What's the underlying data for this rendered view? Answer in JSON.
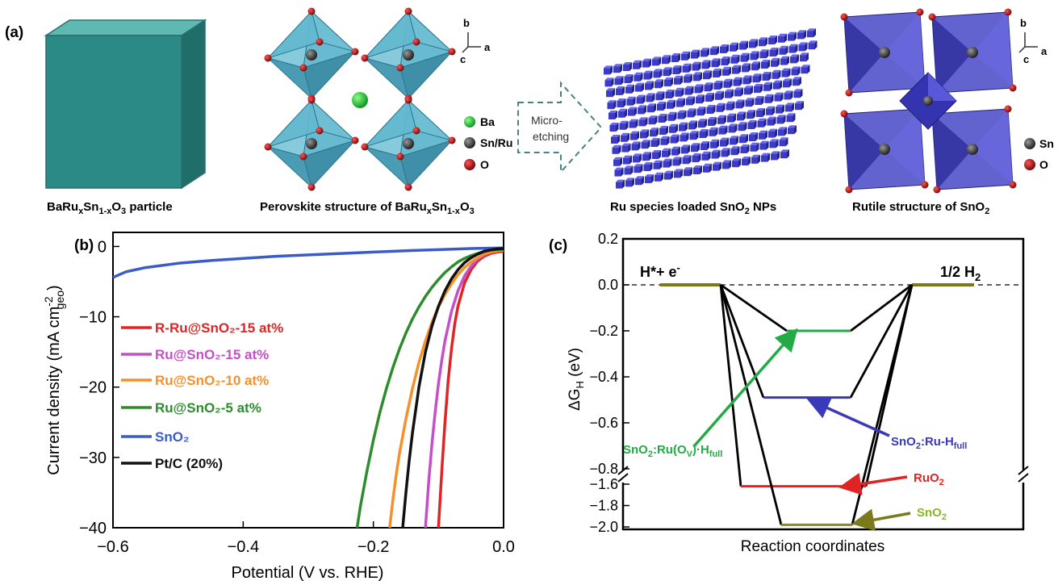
{
  "panel_a": {
    "label": "(a)",
    "cube_caption": {
      "main": "BaRu",
      "x": "x",
      "mid": "Sn",
      "sub": "1-x",
      "o": "O",
      "three": "3",
      "tail": " particle"
    },
    "perov_caption": {
      "main": "Perovskite structure of BaRu",
      "x": "x",
      "mid": "Sn",
      "sub": "1-x",
      "o": "O",
      "three": "3"
    },
    "np_caption": {
      "main": "Ru species loaded SnO",
      "two": "2",
      "tail": " NPs"
    },
    "rutile_caption": {
      "main": "Rutile structure of SnO",
      "two": "2"
    },
    "arrow_text": [
      "Micro-",
      "etching"
    ],
    "legend1": {
      "ba": "Ba",
      "snru": "Sn/Ru",
      "o": "O"
    },
    "legend2": {
      "sn": "Sn",
      "o": "O"
    },
    "axes1": {
      "b": "b",
      "c": "c",
      "a": "a"
    },
    "axes2": {
      "b": "b",
      "c": "c",
      "a": "a"
    },
    "colors": {
      "cube": "#2b8a86",
      "octahedra": "#4fb0c6",
      "ba": "#22cc33",
      "rutile": "#3a3ab8",
      "np": "#3b3bc8",
      "oxygen": "#b01818"
    }
  },
  "chart_data": [
    {
      "type": "line",
      "panel": "(b)",
      "xlabel": "Potential (V vs. RHE)",
      "ylabel": "Current density (mA cm",
      "ylabel_sup": "-2",
      "ylabel_sub": "geo",
      "ylabel_end": ")",
      "xlim": [
        -0.6,
        0.0
      ],
      "ylim": [
        -40,
        2
      ],
      "xticks": [
        -0.6,
        -0.4,
        -0.2,
        0.0
      ],
      "xtick_labels": [
        "−0.6",
        "−0.4",
        "−0.2",
        "0.0"
      ],
      "yticks": [
        0,
        -10,
        -20,
        -30,
        -40
      ],
      "ytick_labels": [
        "0",
        "−10",
        "−20",
        "−30",
        "−40"
      ],
      "legend_position": "left",
      "series": [
        {
          "name": "R-Ru@SnO₂-15 at%",
          "color": "#e02424",
          "x": [
            -0.1,
            -0.095,
            -0.09,
            -0.085,
            -0.08,
            -0.075,
            -0.07,
            -0.06,
            -0.05,
            -0.04,
            -0.03,
            -0.02,
            -0.01,
            0.0
          ],
          "y": [
            -40,
            -32,
            -25,
            -19,
            -14.5,
            -11,
            -8.5,
            -5.2,
            -3.3,
            -2.1,
            -1.4,
            -1.0,
            -0.8,
            -0.7
          ]
        },
        {
          "name": "Ru@SnO₂-15 at%",
          "color": "#c44fc8",
          "x": [
            -0.12,
            -0.115,
            -0.11,
            -0.105,
            -0.1,
            -0.095,
            -0.09,
            -0.08,
            -0.07,
            -0.06,
            -0.05,
            -0.04,
            -0.03,
            -0.02,
            -0.01,
            0.0
          ],
          "y": [
            -40,
            -33.5,
            -28,
            -23.5,
            -19.5,
            -16.2,
            -13.4,
            -9.2,
            -6.3,
            -4.2,
            -2.8,
            -1.8,
            -1.2,
            -0.8,
            -0.6,
            -0.5
          ]
        },
        {
          "name": "Ru@SnO₂-10 at%",
          "color": "#f7902a",
          "x": [
            -0.175,
            -0.17,
            -0.165,
            -0.16,
            -0.15,
            -0.14,
            -0.13,
            -0.12,
            -0.11,
            -0.1,
            -0.09,
            -0.08,
            -0.07,
            -0.06,
            -0.05,
            -0.04,
            -0.03,
            -0.02,
            0.0
          ],
          "y": [
            -40,
            -36,
            -32.5,
            -29.5,
            -24.5,
            -20.2,
            -16.5,
            -13.4,
            -10.8,
            -8.6,
            -6.8,
            -5.3,
            -4.0,
            -3.0,
            -2.2,
            -1.6,
            -1.1,
            -0.8,
            -0.5
          ]
        },
        {
          "name": "Ru@SnO₂-5 at%",
          "color": "#2e8b2e",
          "x": [
            -0.225,
            -0.22,
            -0.21,
            -0.2,
            -0.19,
            -0.18,
            -0.17,
            -0.16,
            -0.15,
            -0.14,
            -0.13,
            -0.12,
            -0.11,
            -0.1,
            -0.09,
            -0.08,
            -0.07,
            -0.06,
            -0.05,
            -0.04,
            -0.03,
            -0.02,
            0.0
          ],
          "y": [
            -40,
            -37,
            -32,
            -27.5,
            -23.6,
            -20.2,
            -17.2,
            -14.6,
            -12.3,
            -10.3,
            -8.6,
            -7.1,
            -5.8,
            -4.7,
            -3.7,
            -2.9,
            -2.2,
            -1.7,
            -1.3,
            -1.0,
            -0.7,
            -0.5,
            -0.4
          ]
        },
        {
          "name": "SnO₂",
          "color": "#3a5bc8",
          "x": [
            -0.6,
            -0.58,
            -0.55,
            -0.5,
            -0.45,
            -0.4,
            -0.35,
            -0.3,
            -0.25,
            -0.2,
            -0.15,
            -0.1,
            -0.05,
            0.0
          ],
          "y": [
            -4.4,
            -3.6,
            -3.0,
            -2.4,
            -2.0,
            -1.7,
            -1.4,
            -1.2,
            -1.0,
            -0.8,
            -0.6,
            -0.45,
            -0.3,
            -0.2
          ]
        },
        {
          "name": "Pt/C (20%)",
          "color": "#111111",
          "x": [
            -0.155,
            -0.15,
            -0.145,
            -0.14,
            -0.13,
            -0.12,
            -0.11,
            -0.1,
            -0.09,
            -0.08,
            -0.07,
            -0.06,
            -0.05,
            -0.04,
            -0.03,
            -0.02,
            -0.01,
            0.0
          ],
          "y": [
            -40,
            -35,
            -30.5,
            -26.5,
            -20,
            -15,
            -11.3,
            -8.5,
            -6.3,
            -4.6,
            -3.3,
            -2.3,
            -1.6,
            -1.1,
            -0.7,
            -0.5,
            -0.35,
            -0.3
          ]
        }
      ]
    },
    {
      "type": "line",
      "panel": "(c)",
      "xlabel": "Reaction coordinates",
      "ylabel": "ΔG",
      "ylabel_sub": "H",
      "ylabel_end": " (eV)",
      "ylim_upper": [
        -0.8,
        0.2
      ],
      "ylim_lower": [
        -2.0,
        -1.6
      ],
      "yticks": [
        0.2,
        0.0,
        -0.2,
        -0.4,
        -0.6,
        -0.8,
        -1.6,
        -1.8,
        -2.0
      ],
      "ytick_labels": [
        "0.2",
        "0.0",
        "−0.2",
        "−0.4",
        "−0.6",
        "−0.8",
        "−1.6",
        "−1.8",
        "−2.0"
      ],
      "left_label": {
        "main": "H*+ e",
        "sup": "-"
      },
      "right_label": {
        "main": "1/2 H",
        "sub": "2"
      },
      "states": [
        {
          "name": "SnO₂:Ru(Oᵥ)·H_full",
          "value": -0.2,
          "color": "#22aa44"
        },
        {
          "name": "SnO₂:Ru-H_full",
          "value": -0.49,
          "color": "#3a3ab8"
        },
        {
          "name": "RuO₂",
          "value": -1.62,
          "color": "#e02424"
        },
        {
          "name": "SnO₂",
          "value": -1.98,
          "color": "#8a8a22"
        }
      ],
      "annotations": {
        "ov": {
          "a": "SnO",
          "b": "2",
          "c": ":Ru(O",
          "d": "V",
          "e": ")·H",
          "f": "full"
        },
        "ruh": {
          "a": "SnO",
          "b": "2",
          "c": ":Ru-H",
          "d": "full"
        },
        "ruo2": {
          "a": "RuO",
          "b": "2"
        },
        "sno2": {
          "a": "SnO",
          "b": "2"
        }
      },
      "annotation_colors": {
        "ov": "#22aa44",
        "ruh": "#3a3ab8",
        "ruo2": "#e02424",
        "sno2": "#8ab822"
      }
    }
  ]
}
